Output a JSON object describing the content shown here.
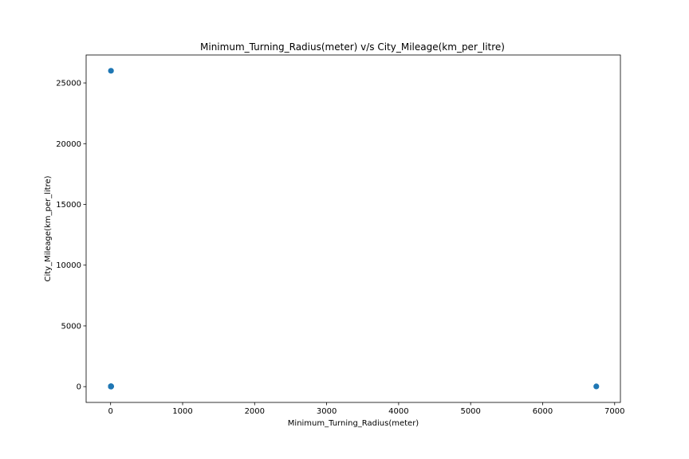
{
  "chart_data": {
    "type": "scatter",
    "title": "Minimum_Turning_Radius(meter) v/s City_Mileage(km_per_litre)",
    "xlabel": "Minimum_Turning_Radius(meter)",
    "ylabel": "City_Mileage(km_per_litre)",
    "xlim": [
      -340,
      7080
    ],
    "ylim": [
      -1300,
      27300
    ],
    "xticks": [
      0,
      1000,
      2000,
      3000,
      4000,
      5000,
      6000,
      7000
    ],
    "yticks": [
      0,
      5000,
      10000,
      15000,
      20000,
      25000
    ],
    "xtick_labels": [
      "0",
      "1000",
      "2000",
      "3000",
      "4000",
      "5000",
      "6000",
      "7000"
    ],
    "ytick_labels": [
      "0",
      "5000",
      "10000",
      "15000",
      "20000",
      "25000"
    ],
    "grid": false,
    "marker_color": "#1f77b4",
    "points": [
      {
        "x": 5.0,
        "y": 26000
      },
      {
        "x": 6745,
        "y": 18
      },
      {
        "x": 4.5,
        "y": 10
      },
      {
        "x": 4.8,
        "y": 12
      },
      {
        "x": 5.0,
        "y": 14
      },
      {
        "x": 5.2,
        "y": 16
      },
      {
        "x": 5.4,
        "y": 18
      },
      {
        "x": 5.6,
        "y": 20
      },
      {
        "x": 5.8,
        "y": 22
      },
      {
        "x": 6.0,
        "y": 25
      },
      {
        "x": 4.9,
        "y": 8
      },
      {
        "x": 5.3,
        "y": 30
      }
    ]
  }
}
